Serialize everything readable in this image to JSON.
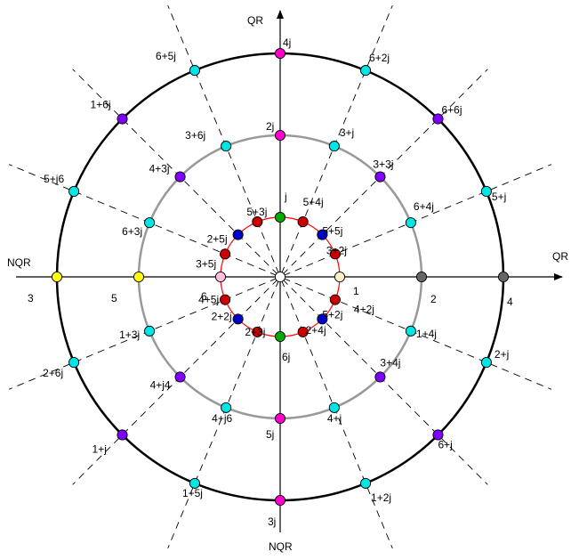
{
  "axes": {
    "vertical_top": "QR",
    "vertical_bottom": "NQR",
    "horizontal_left": "NQR",
    "horizontal_right": "QR"
  },
  "colors": {
    "outer_circle": "#000000",
    "middle_circle": "#999999",
    "inner_circle": "#ff0000",
    "magenta": "#ff00cc",
    "cyan": "#00e5e5",
    "purple": "#7f00ff",
    "red": "#cc0000",
    "blue": "#0000cc",
    "green": "#00aa00",
    "yellow": "#ffff00",
    "gray": "#666666",
    "pink": "#ffc0e0",
    "cream": "#fff0c8",
    "white": "#ffffff"
  },
  "outer_points": [
    {
      "label": "4j",
      "color": "magenta"
    },
    {
      "label": "6+2j",
      "color": "cyan"
    },
    {
      "label": "6+6j",
      "color": "purple"
    },
    {
      "label": "5+j",
      "color": "cyan"
    },
    {
      "label": "4",
      "color": "gray"
    },
    {
      "label": "2+j",
      "color": "cyan"
    },
    {
      "label": "6+j",
      "color": "purple"
    },
    {
      "label": "1+2j",
      "color": "cyan"
    },
    {
      "label": "3j",
      "color": "magenta"
    },
    {
      "label": "1+5j",
      "color": "cyan"
    },
    {
      "label": "1+j",
      "color": "purple"
    },
    {
      "label": "2+6j",
      "color": "cyan"
    },
    {
      "label": "3",
      "color": "yellow"
    },
    {
      "label": "5+j6",
      "color": "cyan"
    },
    {
      "label": "1+6j",
      "color": "purple"
    },
    {
      "label": "6+5j",
      "color": "cyan"
    }
  ],
  "middle_points": [
    {
      "label": "2j",
      "color": "magenta"
    },
    {
      "label": "3+j",
      "color": "cyan"
    },
    {
      "label": "3+3j",
      "color": "purple"
    },
    {
      "label": "6+4j",
      "color": "cyan"
    },
    {
      "label": "2",
      "color": "gray"
    },
    {
      "label": "1+4j",
      "color": "cyan"
    },
    {
      "label": "3+4j",
      "color": "purple"
    },
    {
      "label": "4+j",
      "color": "cyan"
    },
    {
      "label": "5j",
      "color": "magenta"
    },
    {
      "label": "4+j6",
      "color": "cyan"
    },
    {
      "label": "4+j4",
      "color": "purple"
    },
    {
      "label": "1+3j",
      "color": "cyan"
    },
    {
      "label": "5",
      "color": "yellow"
    },
    {
      "label": "6+3j",
      "color": "cyan"
    },
    {
      "label": "4+3j",
      "color": "purple"
    },
    {
      "label": "3+6j",
      "color": "cyan"
    }
  ],
  "inner_points": [
    {
      "label": "j",
      "color": "green"
    },
    {
      "label": "5+4j",
      "color": "red"
    },
    {
      "label": "5+5j",
      "color": "blue"
    },
    {
      "label": "3+2j",
      "color": "red"
    },
    {
      "label": "1",
      "color": "cream"
    },
    {
      "label": "4+2j",
      "color": "red"
    },
    {
      "label": "5+2j",
      "color": "blue"
    },
    {
      "label": "2+4j",
      "color": "red"
    },
    {
      "label": "6j",
      "color": "green"
    },
    {
      "label": "2+3j",
      "color": "red"
    },
    {
      "label": "2+2j",
      "color": "blue"
    },
    {
      "label": "4+5j",
      "color": "red"
    },
    {
      "label": "6",
      "color": "pink"
    },
    {
      "label": "3+5j",
      "color": "red"
    },
    {
      "label": "2+5j",
      "color": "blue"
    },
    {
      "label": "5+3j",
      "color": "red"
    }
  ],
  "origin_point": {
    "color": "white"
  }
}
